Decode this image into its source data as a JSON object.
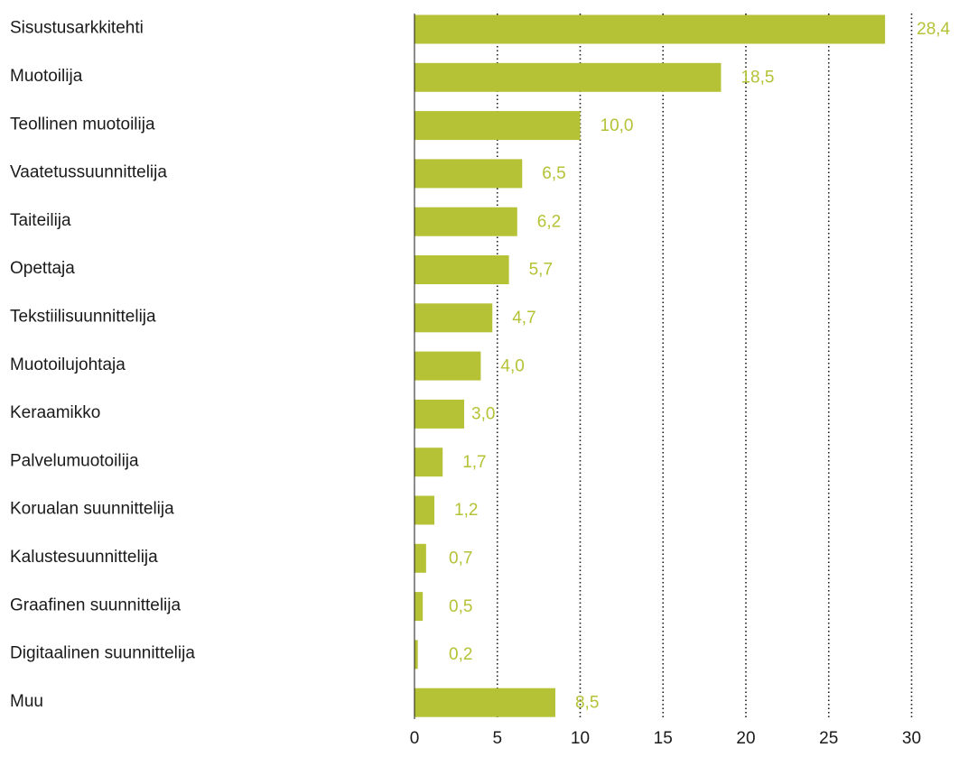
{
  "colors": {
    "bar": "#b5c236",
    "value_label": "#b5c236",
    "text": "#1a1a1a",
    "gridline": "#1a1a1a"
  },
  "chart_data": {
    "type": "bar",
    "orientation": "horizontal",
    "title": "",
    "xlabel": "",
    "ylabel": "",
    "categories": [
      "Sisustusarkkitehti",
      "Muotoilija",
      "Teollinen muotoilija",
      "Vaatetussuunnittelija",
      "Taiteilija",
      "Opettaja",
      "Tekstiilisuunnittelija",
      "Muotoilujohtaja",
      "Keraamikko",
      "Palvelumuotoilija",
      "Korualan suunnittelija",
      "Kalustesuunnittelija",
      "Graafinen suunnittelija",
      "Digitaalinen suunnittelija",
      "Muu"
    ],
    "values": [
      28.4,
      18.5,
      10.0,
      6.5,
      6.2,
      5.7,
      4.7,
      4.0,
      3.0,
      1.7,
      1.2,
      0.7,
      0.5,
      0.2,
      8.5
    ],
    "value_labels": [
      "28,4",
      "18,5",
      "10,0",
      "6,5",
      "6,2",
      "5,7",
      "4,7",
      "4,0",
      "3,0",
      "1,7",
      "1,2",
      "0,7",
      "0,5",
      "0,2",
      "8,5"
    ],
    "xlim": [
      0,
      30
    ],
    "xticks": [
      0,
      5,
      10,
      15,
      20,
      25,
      30
    ],
    "xtick_labels": [
      "0",
      "5",
      "10",
      "15",
      "20",
      "25",
      "30"
    ],
    "grid": "vertical dotted",
    "legend": "none"
  }
}
